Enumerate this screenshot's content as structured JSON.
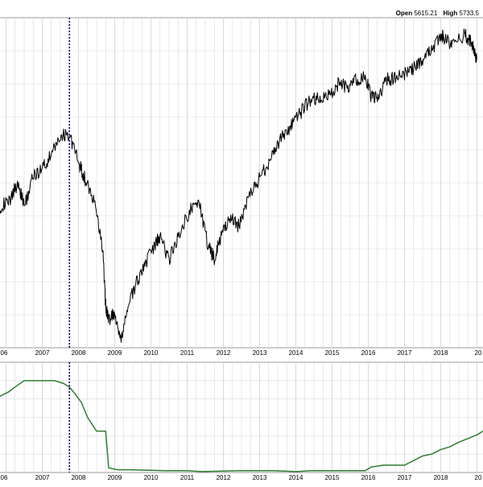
{
  "header": {
    "open_label": "Open",
    "open_value": "5615.21",
    "high_label": "High",
    "high_value": "5733.5"
  },
  "colors": {
    "price_line": "#000000",
    "indicator_line": "#2e7d32",
    "marker_line": "#00008b",
    "grid": "#d9d9d9",
    "panel_border": "#9a9a9a"
  },
  "chart_data": [
    {
      "type": "line",
      "panel": "price",
      "title": "",
      "xlabel": "",
      "ylabel": "",
      "x_tick_labels": [
        "06",
        "2007",
        "2008",
        "2009",
        "2010",
        "2011",
        "2012",
        "2013",
        "2014",
        "2015",
        "2016",
        "2017",
        "2018",
        "20"
      ],
      "xlim": [
        "2005-11",
        "2019-03"
      ],
      "marker_date": "2007-10",
      "grid": true,
      "series": [
        {
          "x": [
            "2005-11",
            "2006-02",
            "2006-05",
            "2006-07",
            "2006-10",
            "2007-01",
            "2007-04",
            "2007-07",
            "2007-10",
            "2008-01",
            "2008-03",
            "2008-06",
            "2008-09",
            "2008-10",
            "2008-11",
            "2009-01",
            "2009-03",
            "2009-05",
            "2009-08",
            "2009-11",
            "2010-02",
            "2010-04",
            "2010-07",
            "2010-10",
            "2011-02",
            "2011-05",
            "2011-08",
            "2011-10",
            "2011-12",
            "2012-03",
            "2012-06",
            "2012-09",
            "2012-12",
            "2013-03",
            "2013-06",
            "2013-09",
            "2013-12",
            "2014-03",
            "2014-06",
            "2014-09",
            "2014-12",
            "2015-03",
            "2015-06",
            "2015-09",
            "2015-12",
            "2016-02",
            "2016-04",
            "2016-07",
            "2016-10",
            "2017-01",
            "2017-04",
            "2017-07",
            "2017-10",
            "2018-01",
            "2018-02",
            "2018-05",
            "2018-09",
            "2018-11",
            "2018-12",
            "2019-01"
          ],
          "values": [
            4010,
            4060,
            4260,
            4010,
            4310,
            4400,
            4520,
            4720,
            4740,
            4450,
            4300,
            4080,
            3600,
            3020,
            2880,
            2940,
            2640,
            2980,
            3230,
            3440,
            3600,
            3720,
            3480,
            3720,
            3980,
            4060,
            3600,
            3500,
            3690,
            3900,
            3820,
            4080,
            4240,
            4400,
            4580,
            4730,
            4830,
            4970,
            5090,
            5080,
            5120,
            5240,
            5200,
            5280,
            5300,
            5110,
            5090,
            5280,
            5300,
            5330,
            5400,
            5480,
            5580,
            5730,
            5700,
            5620,
            5740,
            5650,
            5570,
            5490
          ]
        }
      ],
      "ylim": [
        2600,
        5900
      ]
    },
    {
      "type": "line",
      "panel": "indicator",
      "title": "",
      "xlabel": "",
      "ylabel": "",
      "x_tick_labels": [
        "06",
        "2007",
        "2008",
        "2009",
        "2010",
        "2011",
        "2012",
        "2013",
        "2014",
        "2015",
        "2016",
        "2017",
        "2018",
        "20"
      ],
      "xlim": [
        "2005-11",
        "2019-03"
      ],
      "grid": true,
      "series": [
        {
          "x": [
            "2005-11",
            "2006-02",
            "2006-04",
            "2006-07",
            "2007-05",
            "2007-08",
            "2007-10",
            "2007-12",
            "2008-02",
            "2008-04",
            "2008-07",
            "2008-10",
            "2008-11",
            "2009-02",
            "2009-06",
            "2010-06",
            "2011-01",
            "2011-06",
            "2012-06",
            "2013-06",
            "2014-01",
            "2014-06",
            "2015-06",
            "2015-12",
            "2016-02",
            "2016-06",
            "2016-10",
            "2017-01",
            "2017-04",
            "2017-07",
            "2017-10",
            "2018-01",
            "2018-04",
            "2018-07",
            "2018-10",
            "2019-01",
            "2019-03"
          ],
          "values": [
            0.83,
            0.88,
            0.93,
            1.0,
            1.0,
            0.97,
            0.93,
            0.85,
            0.76,
            0.6,
            0.45,
            0.45,
            0.05,
            0.03,
            0.03,
            0.02,
            0.02,
            0.01,
            0.02,
            0.02,
            0.01,
            0.02,
            0.02,
            0.02,
            0.06,
            0.08,
            0.08,
            0.08,
            0.13,
            0.18,
            0.2,
            0.25,
            0.28,
            0.33,
            0.37,
            0.41,
            0.45
          ]
        }
      ],
      "ylim": [
        0,
        1.2
      ]
    }
  ]
}
